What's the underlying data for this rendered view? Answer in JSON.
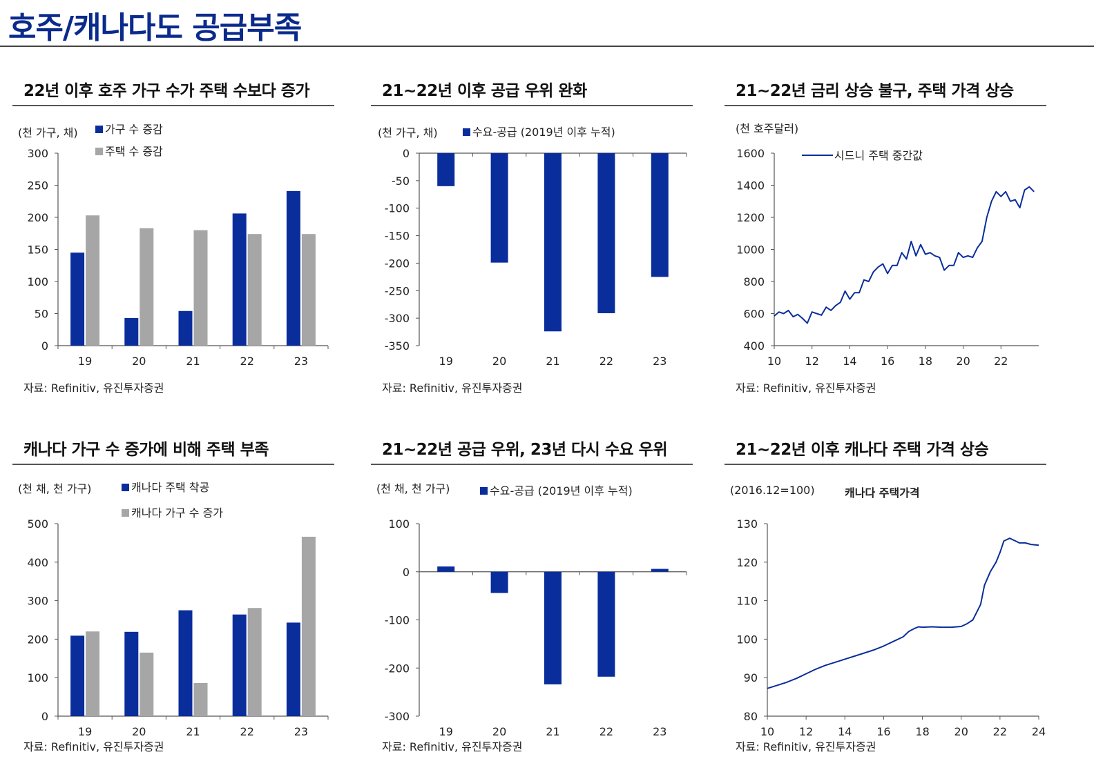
{
  "page": {
    "title": "호주/캐나다도 공급부족"
  },
  "colors": {
    "blue": "#0a2d9c",
    "gray": "#a6a6a6",
    "title_blue": "#0a2a8c",
    "line_blue": "#0a2d9c"
  },
  "chart_data": [
    {
      "type": "bar",
      "title": "22년 이후 호주 가구 수가 주택 수보다 증가",
      "unit_label": "(천 가구, 채)",
      "categories": [
        "19",
        "20",
        "21",
        "22",
        "23"
      ],
      "series": [
        {
          "name": "가구 수 증감",
          "color": "#0a2d9c",
          "values": [
            145,
            43,
            54,
            206,
            241
          ]
        },
        {
          "name": "주택 수 증감",
          "color": "#a6a6a6",
          "values": [
            203,
            183,
            180,
            174,
            174
          ]
        }
      ],
      "ylim": [
        0,
        300
      ],
      "yticks": [
        0,
        50,
        100,
        150,
        200,
        250,
        300
      ],
      "source": "자료: Refinitiv, 유진투자증권"
    },
    {
      "type": "bar",
      "title": "21~22년 이후 공급 우위 완화",
      "unit_label": "(천 가구, 채)",
      "categories": [
        "19",
        "20",
        "21",
        "22",
        "23"
      ],
      "series": [
        {
          "name": "수요-공급 (2019년 이후 누적)",
          "color": "#0a2d9c",
          "values": [
            -60,
            -199,
            -324,
            -291,
            -225
          ]
        }
      ],
      "ylim": [
        -350,
        0
      ],
      "yticks": [
        -350,
        -300,
        -250,
        -200,
        -150,
        -100,
        -50,
        0
      ],
      "source": "자료: Refinitiv, 유진투자증권"
    },
    {
      "type": "line",
      "title": "21~22년 금리 상승 불구, 주택 가격 상승",
      "unit_label": "(천 호주달러)",
      "xlim": [
        10,
        24
      ],
      "xticks": [
        10,
        12,
        14,
        16,
        18,
        20,
        22
      ],
      "ylim": [
        400,
        1600
      ],
      "yticks": [
        400,
        600,
        800,
        1000,
        1200,
        1400,
        1600
      ],
      "series": [
        {
          "name": "시드니 주택 중간값",
          "color": "#0a2d9c",
          "x": [
            10.0,
            10.25,
            10.5,
            10.75,
            11.0,
            11.25,
            11.5,
            11.75,
            12.0,
            12.25,
            12.5,
            12.75,
            13.0,
            13.25,
            13.5,
            13.75,
            14.0,
            14.25,
            14.5,
            14.75,
            15.0,
            15.25,
            15.5,
            15.75,
            16.0,
            16.25,
            16.5,
            16.75,
            17.0,
            17.25,
            17.5,
            17.75,
            18.0,
            18.25,
            18.5,
            18.75,
            19.0,
            19.25,
            19.5,
            19.75,
            20.0,
            20.25,
            20.5,
            20.75,
            21.0,
            21.25,
            21.5,
            21.75,
            22.0,
            22.25,
            22.5,
            22.75,
            23.0,
            23.25,
            23.5,
            23.75
          ],
          "y": [
            585,
            610,
            600,
            620,
            580,
            595,
            570,
            540,
            610,
            600,
            590,
            640,
            620,
            650,
            670,
            740,
            690,
            730,
            730,
            810,
            800,
            860,
            890,
            910,
            850,
            900,
            900,
            980,
            940,
            1050,
            960,
            1030,
            970,
            980,
            960,
            950,
            870,
            900,
            900,
            980,
            950,
            960,
            950,
            1010,
            1050,
            1200,
            1300,
            1360,
            1330,
            1360,
            1300,
            1310,
            1260,
            1370,
            1390,
            1360
          ]
        }
      ],
      "source": "자료: Refinitiv, 유진투자증권"
    },
    {
      "type": "bar",
      "title": "캐나다 가구 수 증가에 비해 주택 부족",
      "unit_label": "(천 채, 천 가구)",
      "categories": [
        "19",
        "20",
        "21",
        "22",
        "23"
      ],
      "series": [
        {
          "name": "캐나다 주택 착공",
          "color": "#0a2d9c",
          "values": [
            209,
            219,
            275,
            264,
            243
          ]
        },
        {
          "name": "캐나다 가구 수 증가",
          "color": "#a6a6a6",
          "values": [
            220,
            165,
            86,
            281,
            466
          ]
        }
      ],
      "ylim": [
        0,
        500
      ],
      "yticks": [
        0,
        100,
        200,
        300,
        400,
        500
      ],
      "source": "자료: Refinitiv, 유진투자증권"
    },
    {
      "type": "bar",
      "title": "21~22년 공급 우위, 23년 다시 수요 우위",
      "unit_label": "(천 채, 천 가구)",
      "categories": [
        "19",
        "20",
        "21",
        "22",
        "23"
      ],
      "series": [
        {
          "name": "수요-공급 (2019년 이후 누적)",
          "color": "#0a2d9c",
          "values": [
            11,
            -44,
            -234,
            -218,
            6
          ]
        }
      ],
      "ylim": [
        -300,
        100
      ],
      "yticks": [
        -300,
        -200,
        -100,
        0,
        100
      ],
      "source": "자료: Refinitiv, 유진투자증권"
    },
    {
      "type": "line",
      "title": "21~22년 이후 캐나다 주택 가격 상승",
      "unit_label": "(2016.12=100)",
      "inline_label": "캐나다 주택가격",
      "xlim": [
        10,
        24
      ],
      "xticks": [
        10,
        12,
        14,
        16,
        18,
        20,
        22,
        24
      ],
      "ylim": [
        80,
        130
      ],
      "yticks": [
        80,
        90,
        100,
        110,
        120,
        130
      ],
      "series": [
        {
          "name": "캐나다 주택가격",
          "color": "#0a2d9c",
          "x": [
            10.0,
            10.5,
            11.0,
            11.5,
            12.0,
            12.5,
            13.0,
            13.5,
            14.0,
            14.5,
            15.0,
            15.5,
            16.0,
            16.5,
            17.0,
            17.3,
            17.6,
            17.8,
            18.0,
            18.5,
            19.0,
            19.5,
            20.0,
            20.3,
            20.6,
            20.8,
            21.0,
            21.2,
            21.5,
            21.8,
            22.0,
            22.2,
            22.5,
            22.8,
            23.0,
            23.3,
            23.6,
            24.0
          ],
          "y": [
            87.2,
            88.0,
            88.8,
            89.8,
            91.0,
            92.2,
            93.2,
            94.0,
            94.8,
            95.6,
            96.4,
            97.2,
            98.2,
            99.4,
            100.6,
            102.0,
            102.8,
            103.2,
            103.1,
            103.2,
            103.1,
            103.1,
            103.3,
            104.0,
            105.0,
            107.0,
            109.0,
            114.0,
            117.5,
            120.0,
            122.5,
            125.5,
            126.2,
            125.5,
            125.0,
            125.0,
            124.6,
            124.4
          ]
        }
      ],
      "source": "자료: Refinitiv, 유진투자증권"
    }
  ]
}
